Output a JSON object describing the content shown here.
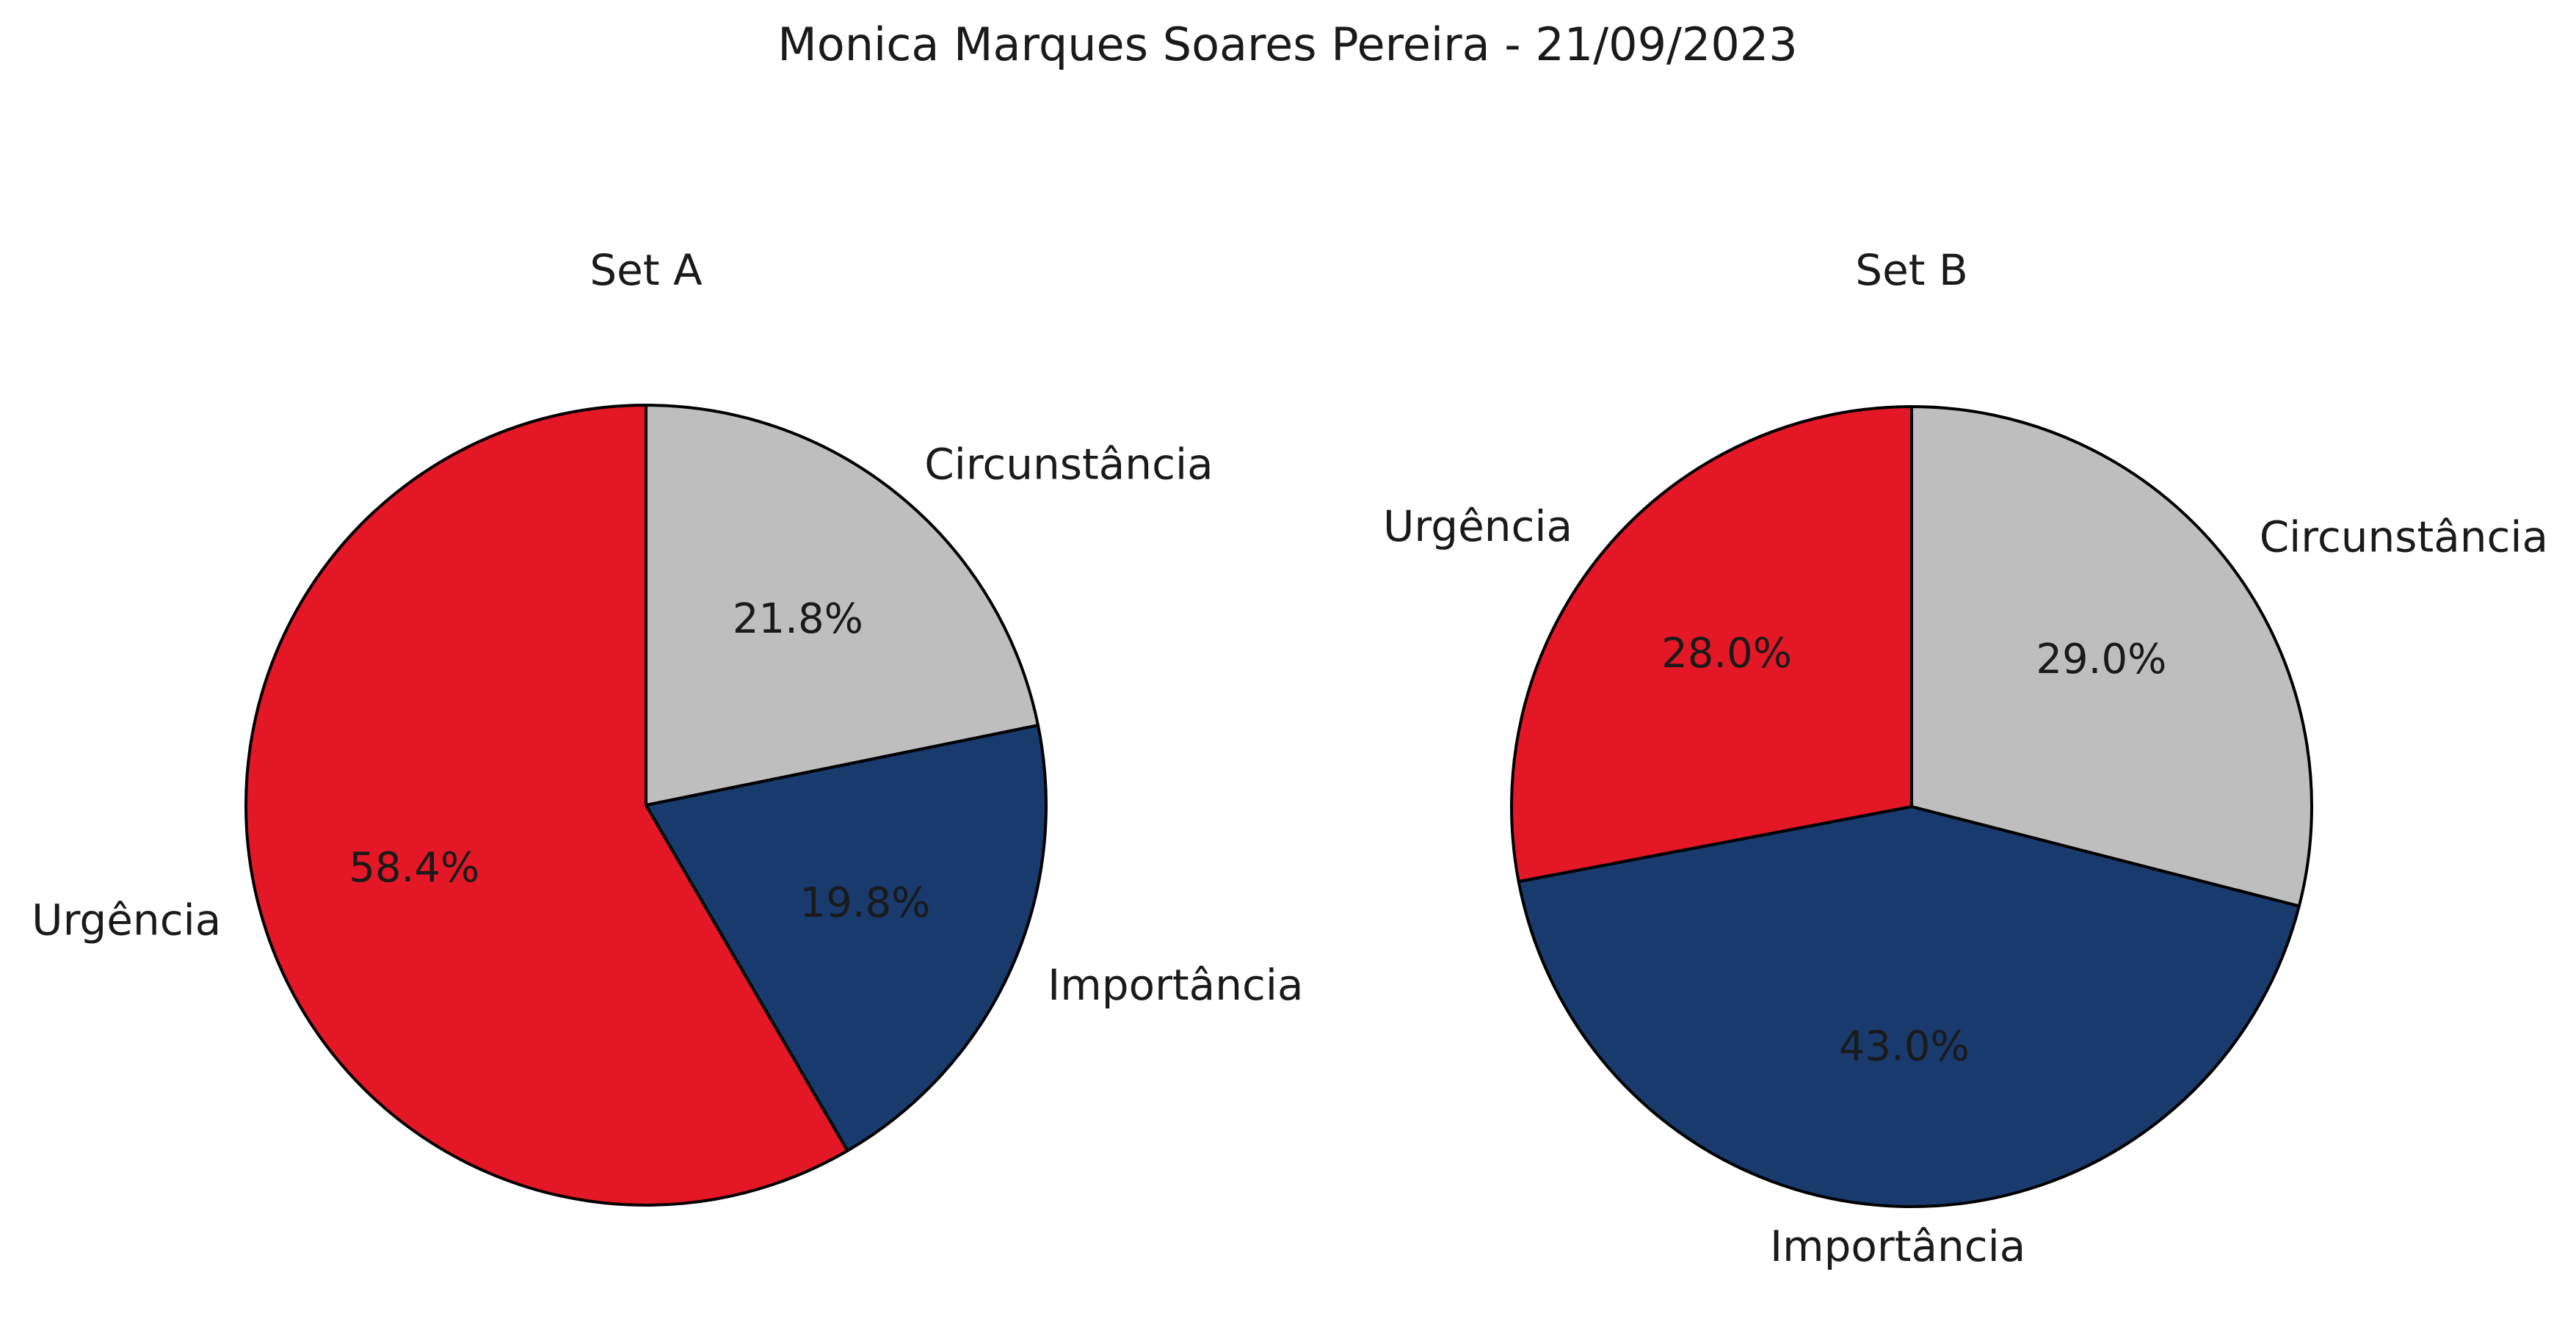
{
  "figure": {
    "title": "Monica Marques Soares Pereira - 21/09/2023"
  },
  "chart_data": [
    {
      "type": "pie",
      "title": "Set A",
      "labels": [
        "Circunstância",
        "Importância",
        "Urgência"
      ],
      "values": [
        21.8,
        19.8,
        58.4
      ],
      "value_labels": [
        "21.8%",
        "19.8%",
        "58.4%"
      ],
      "colors": [
        "#bdbebd",
        "#183a6d",
        "#e31725"
      ],
      "start_angle": "top (90°)",
      "direction": "clockwise"
    },
    {
      "type": "pie",
      "title": "Set B",
      "labels": [
        "Circunstância",
        "Importância",
        "Urgência"
      ],
      "values": [
        29.0,
        43.0,
        28.0
      ],
      "value_labels": [
        "29.0%",
        "43.0%",
        "28.0%"
      ],
      "colors": [
        "#bdbebd",
        "#183a6d",
        "#e31725"
      ],
      "start_angle": "top (90°)",
      "direction": "clockwise"
    }
  ]
}
